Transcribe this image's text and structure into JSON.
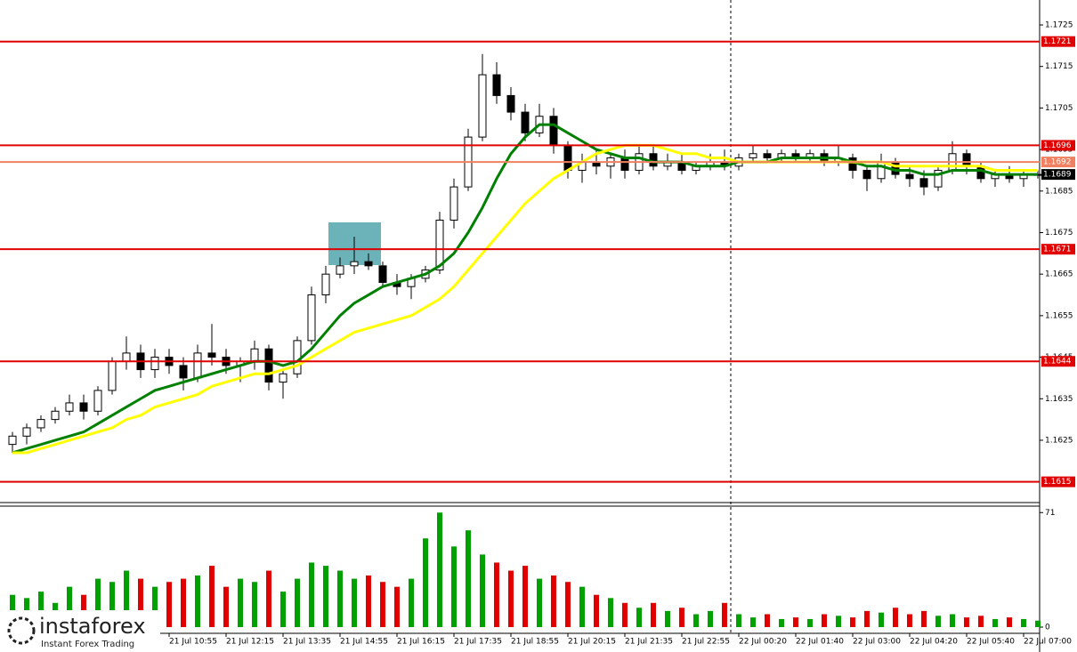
{
  "chart_data": {
    "type": "candlestick",
    "ylim": [
      1.161,
      1.1731
    ],
    "yticks": [
      1.1625,
      1.1635,
      1.1645,
      1.1655,
      1.1665,
      1.1675,
      1.1685,
      1.1695,
      1.1705,
      1.1715,
      1.1725
    ],
    "categories": [
      null,
      null,
      null,
      null,
      null,
      null,
      null,
      null,
      null,
      null,
      null,
      "21 Jul 10:55",
      null,
      null,
      null,
      "21 Jul 12:15",
      null,
      null,
      null,
      "21 Jul 13:35",
      null,
      null,
      null,
      "21 Jul 14:55",
      null,
      null,
      null,
      "21 Jul 16:15",
      null,
      null,
      null,
      "21 Jul 17:35",
      null,
      null,
      null,
      "21 Jul 18:55",
      null,
      null,
      null,
      "21 Jul 20:15",
      null,
      null,
      null,
      "21 Jul 21:35",
      null,
      null,
      null,
      "21 Jul 22:55",
      null,
      null,
      null,
      "22 Jul 00:20",
      null,
      null,
      null,
      "22 Jul 01:40",
      null,
      null,
      null,
      "22 Jul 03:00",
      null,
      null,
      null,
      "22 Jul 04:20",
      null,
      null,
      null,
      "22 Jul 05:40",
      null,
      null,
      null,
      "22 Jul 07:00",
      null
    ],
    "open": [
      1.1624,
      1.1626,
      1.1628,
      1.163,
      1.1632,
      1.1634,
      1.1632,
      1.1637,
      1.1644,
      1.1646,
      1.1642,
      1.1645,
      1.1643,
      1.164,
      1.1646,
      1.1645,
      1.1643,
      1.1644,
      1.1647,
      1.1639,
      1.1641,
      1.1649,
      1.166,
      1.1665,
      1.1667,
      1.1668,
      1.1667,
      1.1663,
      1.1662,
      1.1664,
      1.1666,
      1.1678,
      1.1686,
      1.1698,
      1.1713,
      1.1708,
      1.1704,
      1.1699,
      1.1703,
      1.1696,
      1.169,
      1.1692,
      1.1691,
      1.1693,
      1.169,
      1.1694,
      1.1691,
      1.1692,
      1.169,
      1.1691,
      1.1692,
      1.1691,
      1.1693,
      1.1694,
      1.1693,
      1.1694,
      1.1693,
      1.1694,
      1.1692,
      1.1693,
      1.169,
      1.1688,
      1.1692,
      1.1689,
      1.1688,
      1.1686,
      1.169,
      1.1694,
      1.1691,
      1.1688,
      1.1689,
      1.1688,
      1.1689
    ],
    "high": [
      1.1627,
      1.1629,
      1.1631,
      1.1633,
      1.1636,
      1.1636,
      1.1638,
      1.1645,
      1.165,
      1.1648,
      1.1647,
      1.1647,
      1.1645,
      1.1648,
      1.1653,
      1.1647,
      1.1645,
      1.1649,
      1.1648,
      1.1642,
      1.165,
      1.1662,
      1.1667,
      1.1669,
      1.1674,
      1.167,
      1.1668,
      1.1665,
      1.1665,
      1.1667,
      1.168,
      1.1688,
      1.17,
      1.1718,
      1.1716,
      1.171,
      1.1706,
      1.1706,
      1.1705,
      1.1697,
      1.1694,
      1.1695,
      1.1694,
      1.1695,
      1.1696,
      1.1696,
      1.1694,
      1.1694,
      1.1692,
      1.1694,
      1.1695,
      1.1694,
      1.1696,
      1.1695,
      1.1695,
      1.1695,
      1.1695,
      1.1695,
      1.1696,
      1.1694,
      1.1691,
      1.1694,
      1.1693,
      1.1691,
      1.169,
      1.1691,
      1.1697,
      1.1695,
      1.1692,
      1.169,
      1.1691,
      1.169,
      1.169
    ],
    "low": [
      1.1622,
      1.1624,
      1.1627,
      1.1629,
      1.1631,
      1.163,
      1.1631,
      1.1636,
      1.1642,
      1.164,
      1.164,
      1.1641,
      1.1637,
      1.1639,
      1.1643,
      1.1641,
      1.1639,
      1.1642,
      1.1637,
      1.1635,
      1.164,
      1.1648,
      1.1658,
      1.1664,
      1.1665,
      1.1666,
      1.1662,
      1.166,
      1.1659,
      1.1663,
      1.1665,
      1.1676,
      1.1685,
      1.1697,
      1.1706,
      1.1702,
      1.1697,
      1.1698,
      1.1694,
      1.1688,
      1.1687,
      1.1689,
      1.1688,
      1.1688,
      1.1689,
      1.169,
      1.169,
      1.1689,
      1.1689,
      1.169,
      1.169,
      1.169,
      1.1692,
      1.1692,
      1.1692,
      1.1692,
      1.1692,
      1.1691,
      1.1691,
      1.1688,
      1.1685,
      1.1687,
      1.1688,
      1.1686,
      1.1684,
      1.1685,
      1.1689,
      1.1689,
      1.1687,
      1.1686,
      1.1687,
      1.1686,
      1.1688
    ],
    "close": [
      1.1626,
      1.1628,
      1.163,
      1.1632,
      1.1634,
      1.1632,
      1.1637,
      1.1644,
      1.1646,
      1.1642,
      1.1645,
      1.1643,
      1.164,
      1.1646,
      1.1645,
      1.1643,
      1.1644,
      1.1647,
      1.1639,
      1.1641,
      1.1649,
      1.166,
      1.1665,
      1.1667,
      1.1668,
      1.1667,
      1.1663,
      1.1662,
      1.1664,
      1.1666,
      1.1678,
      1.1686,
      1.1698,
      1.1713,
      1.1708,
      1.1704,
      1.1699,
      1.1703,
      1.1696,
      1.169,
      1.1692,
      1.1691,
      1.1693,
      1.169,
      1.1694,
      1.1691,
      1.1692,
      1.169,
      1.1691,
      1.1692,
      1.1691,
      1.1693,
      1.1694,
      1.1693,
      1.1694,
      1.1693,
      1.1694,
      1.1692,
      1.1693,
      1.169,
      1.1688,
      1.1692,
      1.1689,
      1.1688,
      1.1686,
      1.169,
      1.1694,
      1.1691,
      1.1688,
      1.1689,
      1.1688,
      1.1689,
      1.1689
    ],
    "series": [
      {
        "color": "#008000",
        "values": [
          1.1622,
          1.1623,
          1.1624,
          1.1625,
          1.1626,
          1.1627,
          1.1629,
          1.1631,
          1.1633,
          1.1635,
          1.1637,
          1.1638,
          1.1639,
          1.164,
          1.1641,
          1.1642,
          1.1643,
          1.1644,
          1.1644,
          1.1643,
          1.1644,
          1.1647,
          1.1651,
          1.1655,
          1.1658,
          1.166,
          1.1662,
          1.1663,
          1.1664,
          1.1665,
          1.1667,
          1.167,
          1.1675,
          1.1681,
          1.1688,
          1.1694,
          1.1698,
          1.1701,
          1.1701,
          1.1699,
          1.1697,
          1.1695,
          1.1694,
          1.1693,
          1.1693,
          1.1692,
          1.1692,
          1.1692,
          1.1691,
          1.1691,
          1.1691,
          1.1692,
          1.1692,
          1.1692,
          1.1693,
          1.1693,
          1.1693,
          1.1693,
          1.1693,
          1.1692,
          1.1691,
          1.1691,
          1.169,
          1.169,
          1.1689,
          1.1689,
          1.169,
          1.169,
          1.169,
          1.1689,
          1.1689,
          1.1689,
          1.1689
        ]
      },
      {
        "color": "#ffff00",
        "values": [
          1.1622,
          1.1622,
          1.1623,
          1.1624,
          1.1625,
          1.1626,
          1.1627,
          1.1628,
          1.163,
          1.1631,
          1.1633,
          1.1634,
          1.1635,
          1.1636,
          1.1638,
          1.1639,
          1.164,
          1.1641,
          1.1641,
          1.1642,
          1.1643,
          1.1645,
          1.1647,
          1.1649,
          1.1651,
          1.1652,
          1.1653,
          1.1654,
          1.1655,
          1.1657,
          1.1659,
          1.1662,
          1.1666,
          1.167,
          1.1674,
          1.1678,
          1.1682,
          1.1685,
          1.1688,
          1.169,
          1.1692,
          1.1694,
          1.1695,
          1.1696,
          1.1696,
          1.1696,
          1.1695,
          1.1694,
          1.1694,
          1.1693,
          1.1693,
          1.1692,
          1.1692,
          1.1692,
          1.1692,
          1.1692,
          1.1692,
          1.1692,
          1.1692,
          1.1692,
          1.1692,
          1.1692,
          1.1691,
          1.1691,
          1.1691,
          1.1691,
          1.1691,
          1.1691,
          1.1691,
          1.169,
          1.169,
          1.169,
          1.169
        ]
      }
    ],
    "levels": [
      {
        "value": 1.1721,
        "color": "#e00000"
      },
      {
        "value": 1.1696,
        "color": "#e00000"
      },
      {
        "value": 1.1692,
        "color": "#f08060"
      },
      {
        "value": 1.1671,
        "color": "#e00000"
      },
      {
        "value": 1.1644,
        "color": "#e00000"
      },
      {
        "value": 1.1615,
        "color": "#e00000"
      }
    ],
    "current_price": 1.1689,
    "volume": {
      "values": [
        20,
        18,
        22,
        15,
        25,
        20,
        30,
        28,
        35,
        30,
        25,
        28,
        30,
        32,
        38,
        25,
        30,
        28,
        35,
        22,
        30,
        40,
        38,
        35,
        30,
        32,
        28,
        25,
        30,
        55,
        71,
        50,
        60,
        45,
        40,
        35,
        38,
        30,
        32,
        28,
        25,
        20,
        18,
        15,
        12,
        15,
        10,
        12,
        8,
        10,
        15,
        8,
        6,
        8,
        5,
        6,
        5,
        8,
        7,
        6,
        10,
        9,
        12,
        8,
        10,
        7,
        8,
        6,
        7,
        5,
        6,
        5,
        4
      ],
      "ylim": [
        0,
        75
      ],
      "yticks": [
        0,
        71
      ],
      "up_color": "#00a000",
      "down_color": "#e00000"
    }
  },
  "logo": {
    "name": "instaforex",
    "tagline": "Instant Forex Trading"
  }
}
